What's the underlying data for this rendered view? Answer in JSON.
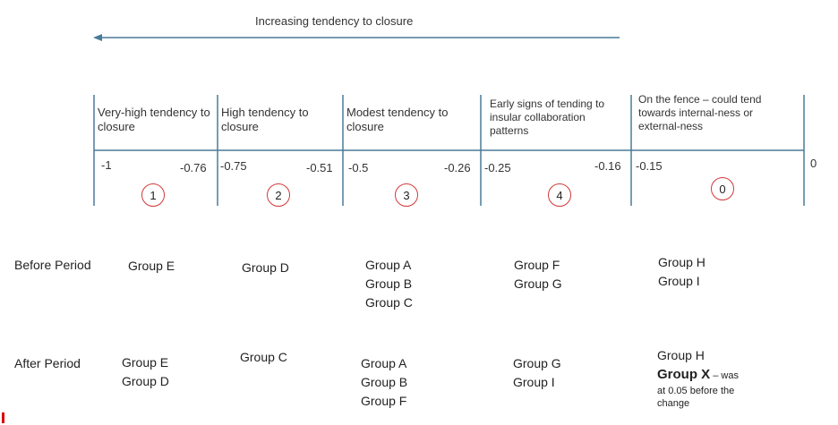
{
  "direction": {
    "label": "Increasing tendency to closure"
  },
  "scale": {
    "segments": [
      {
        "label": "Very-high tendency to closure",
        "low": "-1",
        "high": "-0.76",
        "badge": "1"
      },
      {
        "label": "High tendency to closure",
        "low": "-0.75",
        "high": "-0.51",
        "badge": "2"
      },
      {
        "label": "Modest tendency to closure",
        "low": "-0.5",
        "high": "-0.26",
        "badge": "3"
      },
      {
        "label": "Early signs of tending to insular collaboration patterns",
        "low": "-0.25",
        "high": "-0.16",
        "badge": "4"
      },
      {
        "label": "On the fence – could tend towards internal-ness or external-ness",
        "low": "-0.15",
        "high": "",
        "badge": "0"
      }
    ],
    "end_value": "0"
  },
  "rows": {
    "before": {
      "label": "Before Period",
      "columns": [
        [
          "Group E"
        ],
        [
          "Group D"
        ],
        [
          "Group A",
          "Group B",
          "Group C"
        ],
        [
          "Group F",
          "Group G"
        ],
        [
          "Group H",
          "Group  I"
        ]
      ]
    },
    "after": {
      "label": "After Period",
      "columns": [
        [
          "Group E",
          "Group D"
        ],
        [
          "Group C"
        ],
        [
          "Group A",
          "Group B",
          "Group F"
        ],
        [
          "Group G",
          "Group I"
        ],
        [
          "Group H"
        ]
      ],
      "highlight": {
        "name": "Group X",
        "note_inline": " – was",
        "note": "at 0.05 before the change"
      }
    }
  },
  "colors": {
    "arrow": "#4a7a99",
    "axis": "#4a7a99",
    "badge_border": "#d23a3a"
  }
}
